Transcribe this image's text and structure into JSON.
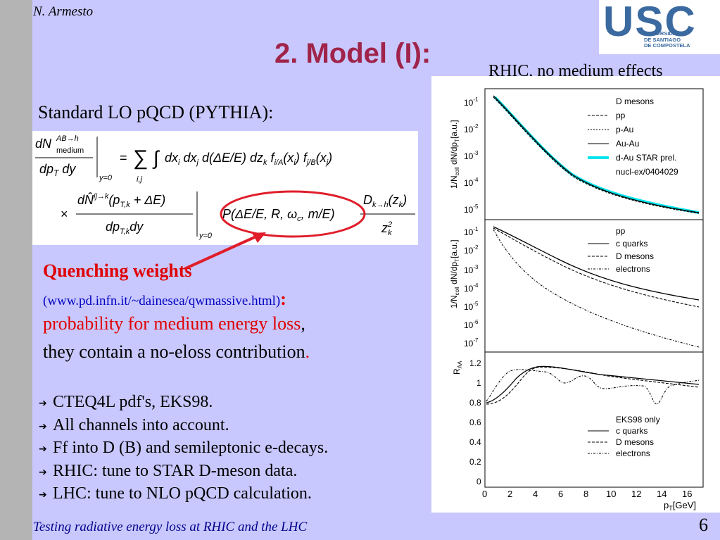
{
  "header": {
    "author": "N. Armesto",
    "logo": {
      "text": "USC",
      "subtext": [
        "UNIVERSIDADE",
        "DE SANTIAGO",
        "DE COMPOSTELA"
      ]
    },
    "title": "2. Model (I):"
  },
  "figure_label": "RHIC, no medium effects",
  "formula_label": "Standard LO pQCD (PYTHIA):",
  "quenching": {
    "title": "Quenching weights",
    "url": "(www.pd.infn.it/~dainesea/qwmassive.html)",
    "colon": ":",
    "prob_text": "probability for medium energy loss",
    "comma": ",",
    "contain_text": "they contain a no-eloss contribution",
    "period": "."
  },
  "bullets": [
    "CTEQ4L pdf's, EKS98.",
    "All channels into account.",
    "Ff into D (B) and semileptonic e-decays.",
    "RHIC: tune to STAR D-meson data.",
    "LHC: tune to NLO pQCD calculation."
  ],
  "footer": {
    "text": "Testing radiative energy loss at RHIC and the LHC",
    "page": "6"
  },
  "plots": {
    "panel1": {
      "ylabel": "1/Ncoll dN/dpT[a.u.]",
      "ticks": [
        "10-1",
        "10-2",
        "10-3",
        "10-4",
        "10-5"
      ],
      "legend_title": "D mesons",
      "legend": [
        "pp",
        "p-Au",
        "Au-Au",
        "d-Au STAR prel.",
        "nucl-ex/0404029"
      ]
    },
    "panel2": {
      "ylabel": "1/Ncoll dN/dpT[a.u.]",
      "ticks": [
        "10-1",
        "10-2",
        "10-3",
        "10-4",
        "10-5",
        "10-6",
        "10-7"
      ],
      "legend_title": "pp",
      "legend": [
        "c quarks",
        "D mesons",
        "electrons"
      ]
    },
    "panel3": {
      "ylabel": "RAA",
      "ticks": [
        "1.2",
        "1",
        "0.8",
        "0.6",
        "0.4",
        "0.2",
        "0"
      ],
      "legend_title": "EKS98 only",
      "legend": [
        "c quarks",
        "D mesons",
        "electrons"
      ]
    },
    "xticks": [
      "0",
      "2",
      "4",
      "6",
      "8",
      "10",
      "12",
      "14",
      "16"
    ],
    "xlabel": "pT[GeV]",
    "colors": {
      "curve": "#000000",
      "star_data": "#00e5ee"
    }
  }
}
